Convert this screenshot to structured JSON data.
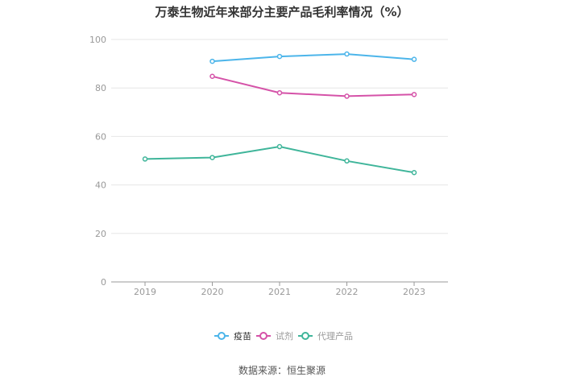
{
  "chart_data": {
    "type": "line",
    "title": "万泰生物近年来部分主要产品毛利率情况（%）",
    "x": [
      "2019",
      "2020",
      "2021",
      "2022",
      "2023"
    ],
    "ylim": [
      0,
      100
    ],
    "yticks": [
      0,
      20,
      40,
      60,
      80,
      100
    ],
    "grid": true,
    "legend_position": "bottom",
    "series": [
      {
        "name": "疫苗",
        "color": "#4cb5ea",
        "values": [
          null,
          91.0,
          93.0,
          94.0,
          91.8
        ]
      },
      {
        "name": "试剂",
        "color": "#d552a8",
        "values": [
          null,
          84.8,
          78.0,
          76.6,
          77.3
        ]
      },
      {
        "name": "代理产品",
        "color": "#3fb59a",
        "values": [
          50.7,
          51.3,
          55.8,
          49.9,
          45.1
        ]
      }
    ]
  },
  "source": "数据来源：恒生聚源"
}
